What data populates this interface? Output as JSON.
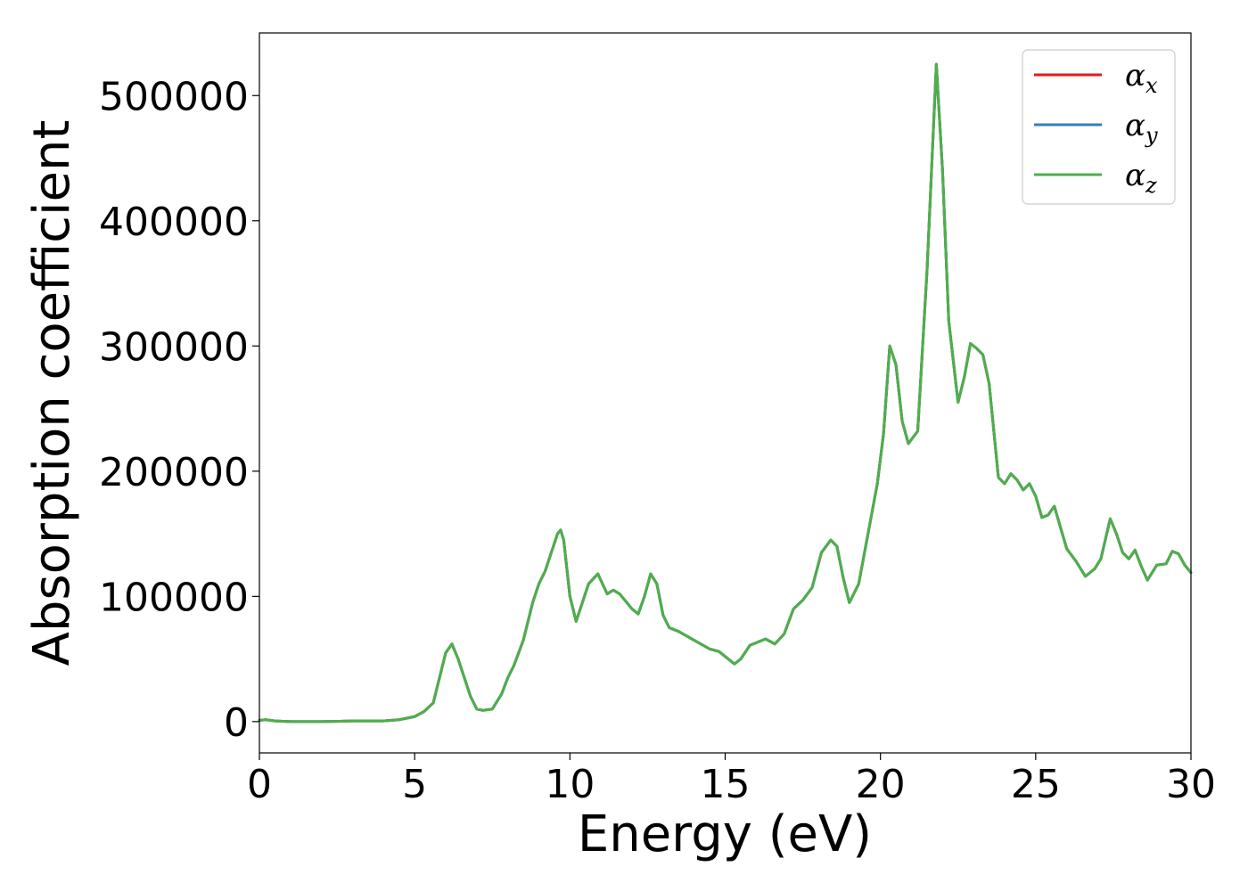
{
  "chart_data": {
    "type": "line",
    "title": "",
    "xlabel": "Energy (eV)",
    "ylabel": "Absorption coefficient",
    "xlim": [
      0,
      30
    ],
    "ylim": [
      -25000,
      550000
    ],
    "x_ticks": [
      0,
      5,
      10,
      15,
      20,
      25,
      30
    ],
    "y_ticks": [
      0,
      100000,
      200000,
      300000,
      400000,
      500000
    ],
    "grid": false,
    "legend_position": "top-right",
    "legend": [
      {
        "symbol": "α",
        "subscript": "x",
        "color": "#e41a1c"
      },
      {
        "symbol": "α",
        "subscript": "y",
        "color": "#377eb8"
      },
      {
        "symbol": "α",
        "subscript": "z",
        "color": "#4daf4a"
      }
    ],
    "x": [
      0,
      0.2,
      0.5,
      1,
      2,
      3,
      4,
      4.5,
      5,
      5.3,
      5.6,
      5.8,
      6.0,
      6.2,
      6.4,
      6.6,
      6.8,
      7.0,
      7.2,
      7.5,
      7.8,
      8.0,
      8.2,
      8.5,
      8.8,
      9.0,
      9.2,
      9.4,
      9.6,
      9.7,
      9.8,
      10.0,
      10.2,
      10.4,
      10.6,
      10.9,
      11.2,
      11.4,
      11.6,
      11.8,
      12.0,
      12.2,
      12.4,
      12.6,
      12.8,
      13.0,
      13.2,
      13.5,
      14.0,
      14.5,
      14.8,
      15.0,
      15.3,
      15.5,
      15.8,
      16.0,
      16.3,
      16.6,
      16.9,
      17.2,
      17.5,
      17.8,
      18.1,
      18.4,
      18.6,
      18.8,
      19.0,
      19.3,
      19.6,
      19.9,
      20.1,
      20.3,
      20.5,
      20.7,
      20.9,
      21.2,
      21.5,
      21.8,
      22.0,
      22.2,
      22.5,
      22.7,
      22.9,
      23.1,
      23.3,
      23.5,
      23.8,
      24.0,
      24.2,
      24.4,
      24.6,
      24.8,
      25.0,
      25.2,
      25.4,
      25.6,
      25.8,
      26.0,
      26.3,
      26.6,
      26.9,
      27.1,
      27.4,
      27.6,
      27.8,
      28.0,
      28.2,
      28.4,
      28.6,
      28.9,
      29.2,
      29.4,
      29.6,
      29.8,
      30.0
    ],
    "series": [
      {
        "name": "αx",
        "color": "#e41a1c",
        "values": [
          1000,
          1500,
          500,
          0,
          0,
          500,
          500,
          1500,
          4000,
          8000,
          15000,
          35000,
          55000,
          62000,
          50000,
          35000,
          20000,
          10000,
          9000,
          10000,
          22000,
          35000,
          45000,
          65000,
          95000,
          110000,
          120000,
          135000,
          150000,
          153000,
          145000,
          100000,
          80000,
          95000,
          110000,
          118000,
          102000,
          105000,
          102000,
          96000,
          90000,
          86000,
          100000,
          118000,
          110000,
          85000,
          75000,
          72000,
          65000,
          58000,
          56000,
          52000,
          46000,
          50000,
          61000,
          63000,
          66000,
          62000,
          70000,
          90000,
          97000,
          107000,
          135000,
          145000,
          140000,
          115000,
          95000,
          110000,
          150000,
          190000,
          230000,
          300000,
          285000,
          240000,
          222000,
          232000,
          360000,
          525000,
          440000,
          320000,
          255000,
          275000,
          302000,
          298000,
          293000,
          270000,
          195000,
          190000,
          198000,
          193000,
          185000,
          190000,
          180000,
          163000,
          165000,
          172000,
          155000,
          138000,
          128000,
          116000,
          122000,
          130000,
          162000,
          150000,
          135000,
          130000,
          137000,
          124000,
          113000,
          125000,
          126000,
          136000,
          134000,
          125000,
          119000
        ]
      },
      {
        "name": "αy",
        "color": "#377eb8",
        "values": [
          1000,
          1500,
          500,
          0,
          0,
          500,
          500,
          1500,
          4000,
          8000,
          15000,
          35000,
          55000,
          62000,
          50000,
          35000,
          20000,
          10000,
          9000,
          10000,
          22000,
          35000,
          45000,
          65000,
          95000,
          110000,
          120000,
          135000,
          150000,
          153000,
          145000,
          100000,
          80000,
          95000,
          110000,
          118000,
          102000,
          105000,
          102000,
          96000,
          90000,
          86000,
          100000,
          118000,
          110000,
          85000,
          75000,
          72000,
          65000,
          58000,
          56000,
          52000,
          46000,
          50000,
          61000,
          63000,
          66000,
          62000,
          70000,
          90000,
          97000,
          107000,
          135000,
          145000,
          140000,
          115000,
          95000,
          110000,
          150000,
          190000,
          230000,
          300000,
          285000,
          240000,
          222000,
          232000,
          360000,
          525000,
          440000,
          320000,
          255000,
          275000,
          302000,
          298000,
          293000,
          270000,
          195000,
          190000,
          198000,
          193000,
          185000,
          190000,
          180000,
          163000,
          165000,
          172000,
          155000,
          138000,
          128000,
          116000,
          122000,
          130000,
          162000,
          150000,
          135000,
          130000,
          137000,
          124000,
          113000,
          125000,
          126000,
          136000,
          134000,
          125000,
          119000
        ]
      },
      {
        "name": "αz",
        "color": "#4daf4a",
        "values": [
          1000,
          1500,
          500,
          0,
          0,
          500,
          500,
          1500,
          4000,
          8000,
          15000,
          35000,
          55000,
          62000,
          50000,
          35000,
          20000,
          10000,
          9000,
          10000,
          22000,
          35000,
          45000,
          65000,
          95000,
          110000,
          120000,
          135000,
          150000,
          153000,
          145000,
          100000,
          80000,
          95000,
          110000,
          118000,
          102000,
          105000,
          102000,
          96000,
          90000,
          86000,
          100000,
          118000,
          110000,
          85000,
          75000,
          72000,
          65000,
          58000,
          56000,
          52000,
          46000,
          50000,
          61000,
          63000,
          66000,
          62000,
          70000,
          90000,
          97000,
          107000,
          135000,
          145000,
          140000,
          115000,
          95000,
          110000,
          150000,
          190000,
          230000,
          300000,
          285000,
          240000,
          222000,
          232000,
          360000,
          525000,
          440000,
          320000,
          255000,
          275000,
          302000,
          298000,
          293000,
          270000,
          195000,
          190000,
          198000,
          193000,
          185000,
          190000,
          180000,
          163000,
          165000,
          172000,
          155000,
          138000,
          128000,
          116000,
          122000,
          130000,
          162000,
          150000,
          135000,
          130000,
          137000,
          124000,
          113000,
          125000,
          126000,
          136000,
          134000,
          125000,
          119000
        ]
      }
    ]
  }
}
